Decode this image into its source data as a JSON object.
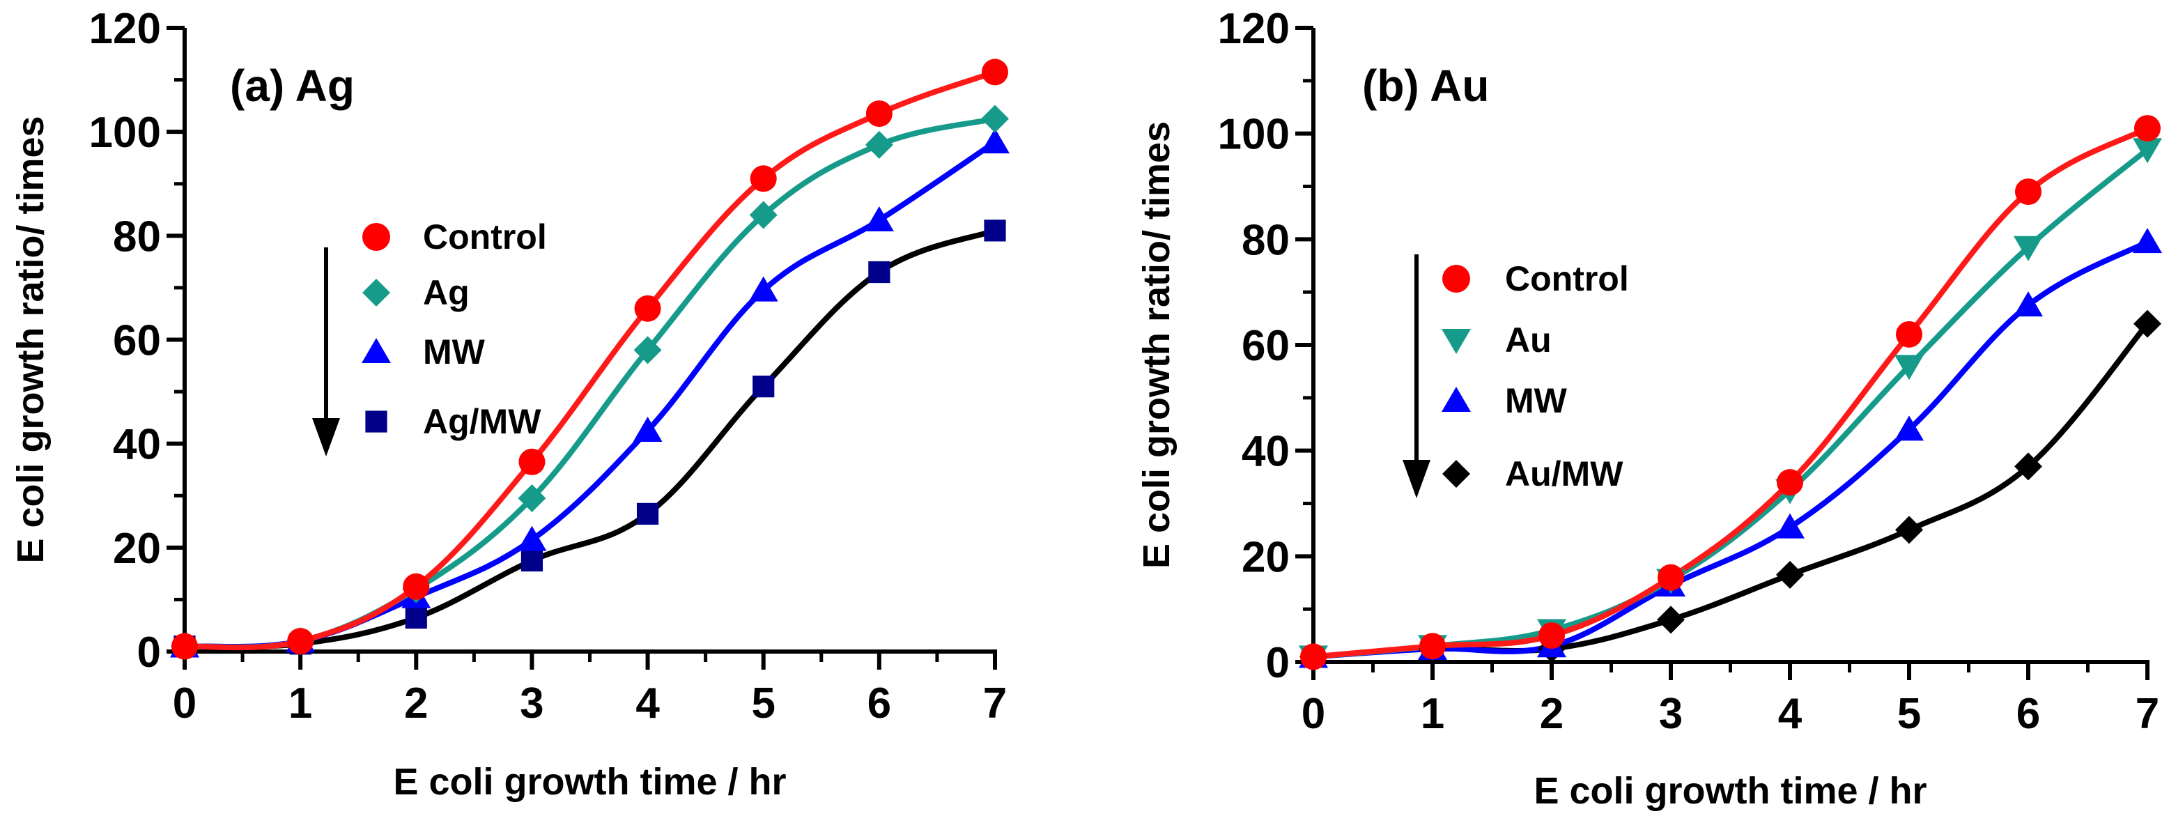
{
  "chart_data": [
    {
      "type": "line",
      "title": "(a) Ag",
      "xlabel": "E coli growth time / hr",
      "ylabel": "E coli growth ratio/ times",
      "xlim": [
        0,
        7
      ],
      "ylim": [
        0,
        120
      ],
      "x_ticks": [
        0,
        1,
        2,
        3,
        4,
        5,
        6,
        7
      ],
      "y_ticks": [
        0,
        20,
        40,
        60,
        80,
        100,
        120
      ],
      "legend_arrow": "down",
      "legend_position": "center-left",
      "x": [
        0,
        1,
        2,
        3,
        4,
        5,
        6,
        7
      ],
      "series": [
        {
          "name": "Control",
          "marker": "circle",
          "marker_color": "#ff0000",
          "line_color": "#ff1a1a",
          "values": [
            1,
            2,
            12.5,
            36.5,
            66,
            91,
            103.5,
            111.5
          ]
        },
        {
          "name": "Ag",
          "marker": "diamond",
          "marker_color": "#169b8b",
          "line_color": "#169b8b",
          "values": [
            1,
            2,
            12,
            29.5,
            58,
            84,
            97.5,
            102.5
          ]
        },
        {
          "name": "MW",
          "marker": "triangle-up",
          "marker_color": "#0000ff",
          "line_color": "#0000ff",
          "values": [
            1,
            2,
            10.5,
            21.5,
            42.5,
            69.5,
            83,
            98
          ]
        },
        {
          "name": "Ag/MW",
          "marker": "square",
          "marker_color": "#00008b",
          "line_color": "#000000",
          "values": [
            1,
            1.5,
            6.5,
            17.5,
            26.5,
            51,
            73,
            81
          ]
        }
      ]
    },
    {
      "type": "line",
      "title": "(b) Au",
      "xlabel": "E coli growth time / hr",
      "ylabel": "E coli growth ratio/ times",
      "xlim": [
        0,
        7
      ],
      "ylim": [
        0,
        120
      ],
      "x_ticks": [
        0,
        1,
        2,
        3,
        4,
        5,
        6,
        7
      ],
      "y_ticks": [
        0,
        20,
        40,
        60,
        80,
        100,
        120
      ],
      "legend_arrow": "down",
      "legend_position": "center-left",
      "x": [
        0,
        1,
        2,
        3,
        4,
        5,
        6,
        7
      ],
      "series": [
        {
          "name": "Control",
          "marker": "circle",
          "marker_color": "#ff0000",
          "line_color": "#ff1a1a",
          "values": [
            1,
            3,
            5,
            16,
            34,
            62,
            89,
            101
          ]
        },
        {
          "name": "Au",
          "marker": "triangle-down",
          "marker_color": "#169b8b",
          "line_color": "#169b8b",
          "values": [
            1,
            3,
            6,
            15.5,
            32.5,
            56,
            78.5,
            97
          ]
        },
        {
          "name": "MW",
          "marker": "triangle-up",
          "marker_color": "#0000ff",
          "line_color": "#0000ff",
          "values": [
            1,
            2.5,
            3,
            14.5,
            25.5,
            44,
            67.5,
            79.5
          ]
        },
        {
          "name": "Au/MW",
          "marker": "diamond",
          "marker_color": "#000000",
          "line_color": "#000000",
          "values": [
            1,
            2.5,
            2.5,
            8,
            16.5,
            25,
            37,
            64
          ]
        }
      ]
    }
  ]
}
